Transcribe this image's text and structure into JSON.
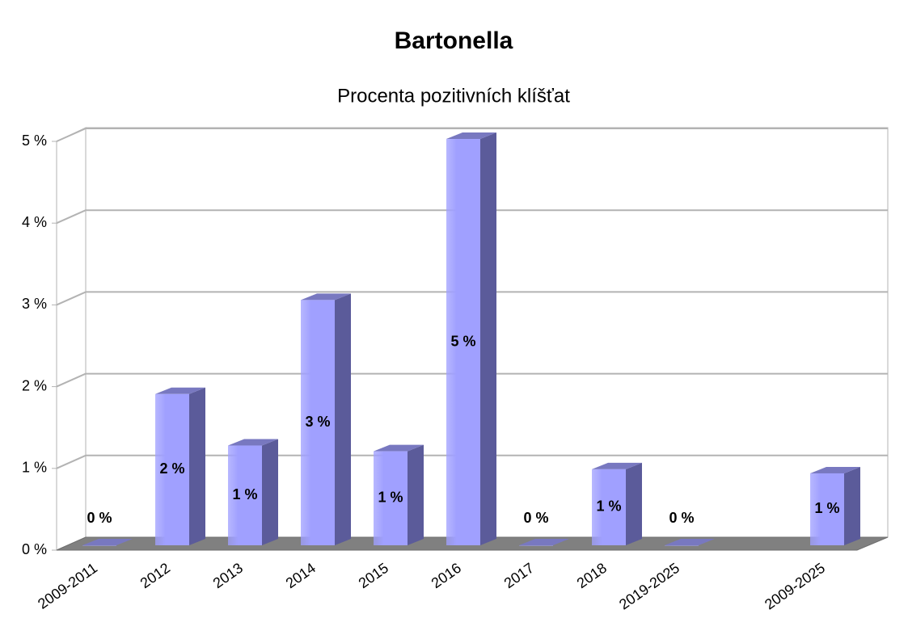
{
  "chart_data": {
    "type": "bar",
    "title": "Bartonella",
    "subtitle": "Procenta pozitivních klíšťat",
    "categories": [
      "2009-2011",
      "2012",
      "2013",
      "2014",
      "2015",
      "2016",
      "2017",
      "2018",
      "2019-2025",
      null,
      "2009-2025"
    ],
    "values": [
      0,
      1.85,
      1.22,
      3.0,
      1.15,
      4.97,
      0,
      0.93,
      0,
      null,
      0.88
    ],
    "value_labels": [
      "0 %",
      "2 %",
      "1 %",
      "3 %",
      "1 %",
      "5 %",
      "0 %",
      "1 %",
      "0 %",
      null,
      "1 %"
    ],
    "color": "#a0a0ff",
    "ylim": [
      0,
      5
    ],
    "yticks": [
      {
        "value": 0,
        "label": "0 %"
      },
      {
        "value": 1,
        "label": "1 %"
      },
      {
        "value": 2,
        "label": "2 %"
      },
      {
        "value": 3,
        "label": "3 %"
      },
      {
        "value": 4,
        "label": "4 %"
      },
      {
        "value": 5,
        "label": "5 %"
      }
    ],
    "grid": true
  }
}
